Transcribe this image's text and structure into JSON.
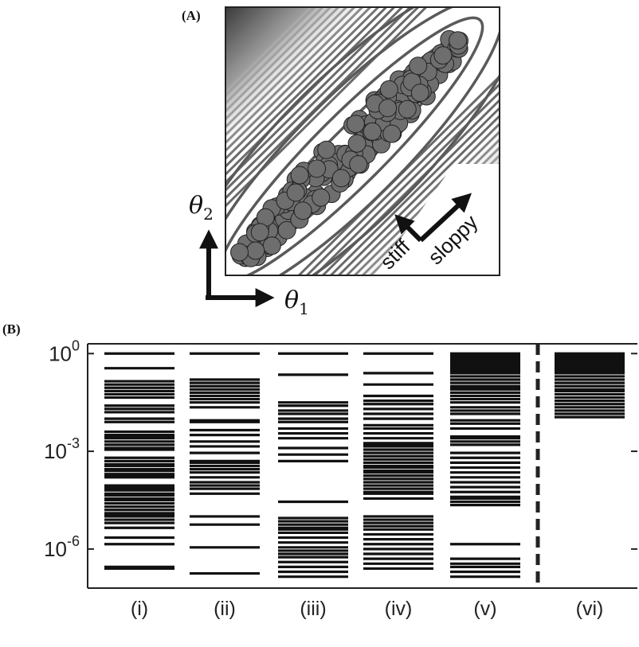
{
  "panel_a": {
    "label": "(A)",
    "theta1": {
      "symbol": "θ",
      "sub": "1"
    },
    "theta2": {
      "symbol": "θ",
      "sub": "2"
    },
    "stiff_label": "stiff",
    "sloppy_label": "sloppy"
  },
  "panel_b": {
    "label": "(B)",
    "divider": "dashed"
  },
  "chart_data": {
    "type": "spectrum",
    "scale": "log",
    "ylim_log10": [
      -7.2,
      0.3
    ],
    "y_ticks": [
      {
        "base": "10",
        "exp": "0",
        "log10": 0
      },
      {
        "base": "10",
        "exp": "-3",
        "log10": -3
      },
      {
        "base": "10",
        "exp": "-6",
        "log10": -6
      }
    ],
    "categories": [
      "(i)",
      "(ii)",
      "(iii)",
      "(iv)",
      "(v)",
      "(vi)"
    ],
    "series": [
      {
        "values_log10": [
          0,
          -0.45,
          -0.85,
          -0.95,
          -1.05,
          -1.15,
          -1.25,
          -1.35,
          -1.6,
          -1.7,
          -1.8,
          -2.0,
          -2.1,
          -2.4,
          -2.5,
          -2.55,
          -2.6,
          -2.7,
          -2.8,
          -2.9,
          -2.95,
          -3.2,
          -3.3,
          -3.4,
          -3.45,
          -3.55,
          -3.6,
          -3.7,
          -3.75,
          -3.8,
          -4.05,
          -4.1,
          -4.15,
          -4.2,
          -4.3,
          -4.35,
          -4.45,
          -4.5,
          -4.6,
          -4.7,
          -4.8,
          -4.9,
          -4.95,
          -5.0,
          -5.1,
          -5.2,
          -5.35,
          -5.65,
          -5.85,
          -6.55,
          -6.6
        ]
      },
      {
        "values_log10": [
          0,
          -0.8,
          -0.9,
          -1.0,
          -1.1,
          -1.2,
          -1.3,
          -1.4,
          -1.5,
          -1.65,
          -2.05,
          -2.1,
          -2.35,
          -2.5,
          -2.7,
          -2.85,
          -3.05,
          -3.3,
          -3.35,
          -3.45,
          -3.55,
          -3.65,
          -3.8,
          -3.95,
          -4.05,
          -4.15,
          -4.3,
          -5.0,
          -5.25,
          -5.95,
          -6.75
        ]
      },
      {
        "values_log10": [
          0,
          -0.65,
          -1.5,
          -1.6,
          -1.75,
          -1.85,
          -2.0,
          -2.1,
          -2.3,
          -2.45,
          -2.6,
          -2.9,
          -3.1,
          -3.3,
          -4.55,
          -5.05,
          -5.15,
          -5.25,
          -5.35,
          -5.4,
          -5.5,
          -5.65,
          -5.8,
          -5.95,
          -6.05,
          -6.15,
          -6.25,
          -6.4,
          -6.55,
          -6.7,
          -6.85
        ]
      },
      {
        "values_log10": [
          0,
          -0.6,
          -0.95,
          -1.3,
          -1.45,
          -1.55,
          -1.7,
          -1.85,
          -2.0,
          -2.2,
          -2.3,
          -2.45,
          -2.6,
          -2.75,
          -2.8,
          -2.85,
          -2.95,
          -3.05,
          -3.15,
          -3.25,
          -3.35,
          -3.45,
          -3.5,
          -3.6,
          -3.65,
          -3.75,
          -3.85,
          -3.95,
          -4.05,
          -4.15,
          -4.25,
          -4.3,
          -4.45,
          -5.0,
          -5.1,
          -5.2,
          -5.3,
          -5.4,
          -5.55,
          -5.7,
          -5.85,
          -6.0,
          -6.15,
          -6.3,
          -6.45,
          -6.6
        ]
      },
      {
        "values_log10": [
          0,
          -0.05,
          -0.1,
          -0.15,
          -0.2,
          -0.25,
          -0.3,
          -0.35,
          -0.4,
          -0.45,
          -0.5,
          -0.55,
          -0.6,
          -0.7,
          -0.8,
          -0.9,
          -1.0,
          -1.05,
          -1.1,
          -1.2,
          -1.3,
          -1.4,
          -1.5,
          -1.65,
          -1.75,
          -1.85,
          -2.05,
          -2.15,
          -2.3,
          -2.55,
          -2.6,
          -2.7,
          -2.8,
          -3.05,
          -3.2,
          -3.35,
          -3.5,
          -3.65,
          -3.8,
          -3.95,
          -4.1,
          -4.25,
          -4.4,
          -4.45,
          -4.55,
          -4.65,
          -5.85,
          -6.3,
          -6.45,
          -6.55,
          -6.7,
          -6.85
        ]
      },
      {
        "values_log10": [
          0,
          -0.05,
          -0.1,
          -0.15,
          -0.2,
          -0.25,
          -0.3,
          -0.35,
          -0.4,
          -0.45,
          -0.5,
          -0.55,
          -0.6,
          -0.7,
          -0.8,
          -0.9,
          -1.0,
          -1.1,
          -1.15,
          -1.25,
          -1.35,
          -1.45,
          -1.55,
          -1.65,
          -1.75,
          -1.85,
          -1.95
        ]
      }
    ]
  }
}
